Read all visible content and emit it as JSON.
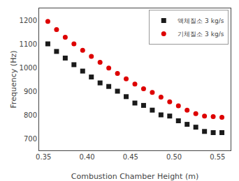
{
  "chart_data": {
    "type": "scatter",
    "xlabel": "Combustion Chamber Height (m)",
    "ylabel": "Frequency (Hz)",
    "x": [
      0.355,
      0.365,
      0.375,
      0.385,
      0.395,
      0.405,
      0.415,
      0.425,
      0.435,
      0.445,
      0.455,
      0.465,
      0.475,
      0.485,
      0.495,
      0.505,
      0.515,
      0.525,
      0.535,
      0.545,
      0.555
    ],
    "series": [
      {
        "name": "액체질소 3 kg/s",
        "color": "#1a1a1a",
        "marker": "square",
        "values": [
          1100,
          1068,
          1040,
          1012,
          985,
          960,
          935,
          920,
          900,
          877,
          850,
          840,
          820,
          800,
          795,
          775,
          760,
          748,
          730,
          725,
          725
        ]
      },
      {
        "name": "기체질소 3 kg/s",
        "color": "#dd0000",
        "marker": "circle",
        "values": [
          1195,
          1160,
          1128,
          1100,
          1073,
          1047,
          1022,
          998,
          975,
          952,
          930,
          910,
          895,
          875,
          855,
          838,
          820,
          805,
          795,
          793,
          790
        ]
      }
    ],
    "xlim": [
      0.345,
      0.565
    ],
    "ylim": [
      650,
      1250
    ],
    "xticks": [
      0.35,
      {
        "value": 0.4,
        "label": "0.40"
      },
      0.45,
      {
        "value": 0.5,
        "label": "0.50"
      },
      0.55
    ],
    "yticks": [
      700,
      800,
      900,
      1000,
      1100,
      1200
    ],
    "grid": false,
    "legend": "upper right"
  }
}
